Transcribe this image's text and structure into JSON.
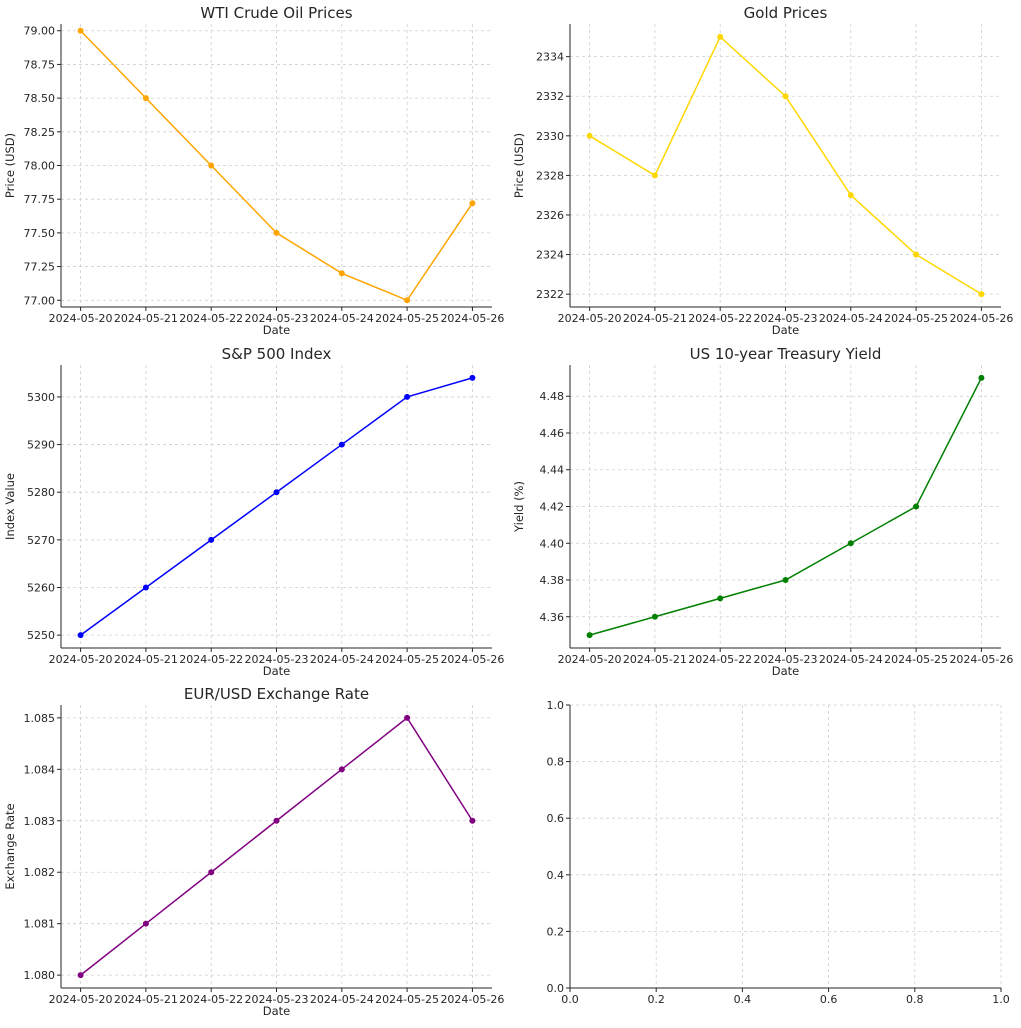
{
  "chart_data": [
    {
      "type": "line",
      "title": "WTI Crude Oil Prices",
      "xlabel": "Date",
      "ylabel": "Price (USD)",
      "categories": [
        "2024-05-20",
        "2024-05-21",
        "2024-05-22",
        "2024-05-23",
        "2024-05-24",
        "2024-05-25",
        "2024-05-26"
      ],
      "values": [
        79.0,
        78.5,
        78.0,
        77.5,
        77.2,
        77.0,
        77.72
      ],
      "yticks": [
        77.0,
        77.25,
        77.5,
        77.75,
        78.0,
        78.25,
        78.5,
        78.75,
        79.0
      ],
      "ytick_labels": [
        "77.00",
        "77.25",
        "77.50",
        "77.75",
        "78.00",
        "78.25",
        "78.50",
        "78.75",
        "79.00"
      ],
      "ylim": [
        76.95,
        79.05
      ],
      "color": "#FFA500",
      "grid": true
    },
    {
      "type": "line",
      "title": "Gold Prices",
      "xlabel": "Date",
      "ylabel": "Price (USD)",
      "categories": [
        "2024-05-20",
        "2024-05-21",
        "2024-05-22",
        "2024-05-23",
        "2024-05-24",
        "2024-05-25",
        "2024-05-26"
      ],
      "values": [
        2330,
        2328,
        2335,
        2332,
        2327,
        2324,
        2322
      ],
      "yticks": [
        2322,
        2324,
        2326,
        2328,
        2330,
        2332,
        2334
      ],
      "ytick_labels": [
        "2322",
        "2324",
        "2326",
        "2328",
        "2330",
        "2332",
        "2334"
      ],
      "ylim": [
        2321.35,
        2335.65
      ],
      "color": "#FFD700",
      "grid": true
    },
    {
      "type": "line",
      "title": "S&P 500 Index",
      "xlabel": "Date",
      "ylabel": "Index Value",
      "categories": [
        "2024-05-20",
        "2024-05-21",
        "2024-05-22",
        "2024-05-23",
        "2024-05-24",
        "2024-05-25",
        "2024-05-26"
      ],
      "values": [
        5250,
        5260,
        5270,
        5280,
        5290,
        5300,
        5304
      ],
      "yticks": [
        5250,
        5260,
        5270,
        5280,
        5290,
        5300
      ],
      "ytick_labels": [
        "5250",
        "5260",
        "5270",
        "5280",
        "5290",
        "5300"
      ],
      "ylim": [
        5247.3,
        5306.7
      ],
      "color": "#0000FF",
      "grid": true
    },
    {
      "type": "line",
      "title": "US 10-year Treasury Yield",
      "xlabel": "Date",
      "ylabel": "Yield (%)",
      "categories": [
        "2024-05-20",
        "2024-05-21",
        "2024-05-22",
        "2024-05-23",
        "2024-05-24",
        "2024-05-25",
        "2024-05-26"
      ],
      "values": [
        4.35,
        4.36,
        4.37,
        4.38,
        4.4,
        4.42,
        4.49
      ],
      "yticks": [
        4.36,
        4.38,
        4.4,
        4.42,
        4.44,
        4.46,
        4.48
      ],
      "ytick_labels": [
        "4.36",
        "4.38",
        "4.40",
        "4.42",
        "4.44",
        "4.46",
        "4.48"
      ],
      "ylim": [
        4.343,
        4.497
      ],
      "color": "#008000",
      "grid": true
    },
    {
      "type": "line",
      "title": "EUR/USD Exchange Rate",
      "xlabel": "Date",
      "ylabel": "Exchange Rate",
      "categories": [
        "2024-05-20",
        "2024-05-21",
        "2024-05-22",
        "2024-05-23",
        "2024-05-24",
        "2024-05-25",
        "2024-05-26"
      ],
      "values": [
        1.08,
        1.081,
        1.082,
        1.083,
        1.084,
        1.085,
        1.083
      ],
      "yticks": [
        1.08,
        1.081,
        1.082,
        1.083,
        1.084,
        1.085
      ],
      "ytick_labels": [
        "1.080",
        "1.081",
        "1.082",
        "1.083",
        "1.084",
        "1.085"
      ],
      "ylim": [
        1.07975,
        1.08525
      ],
      "color": "#800080",
      "grid": true
    },
    {
      "type": "line",
      "title": "",
      "xlabel": "",
      "ylabel": "",
      "categories": [],
      "values": [],
      "xticks": [
        0.0,
        0.2,
        0.4,
        0.6,
        0.8,
        1.0
      ],
      "xtick_labels": [
        "0.0",
        "0.2",
        "0.4",
        "0.6",
        "0.8",
        "1.0"
      ],
      "yticks": [
        0.0,
        0.2,
        0.4,
        0.6,
        0.8,
        1.0
      ],
      "ytick_labels": [
        "0.0",
        "0.2",
        "0.4",
        "0.6",
        "0.8",
        "1.0"
      ],
      "xlim": [
        0,
        1
      ],
      "ylim": [
        0,
        1
      ],
      "color": "#000000",
      "grid": true
    }
  ]
}
